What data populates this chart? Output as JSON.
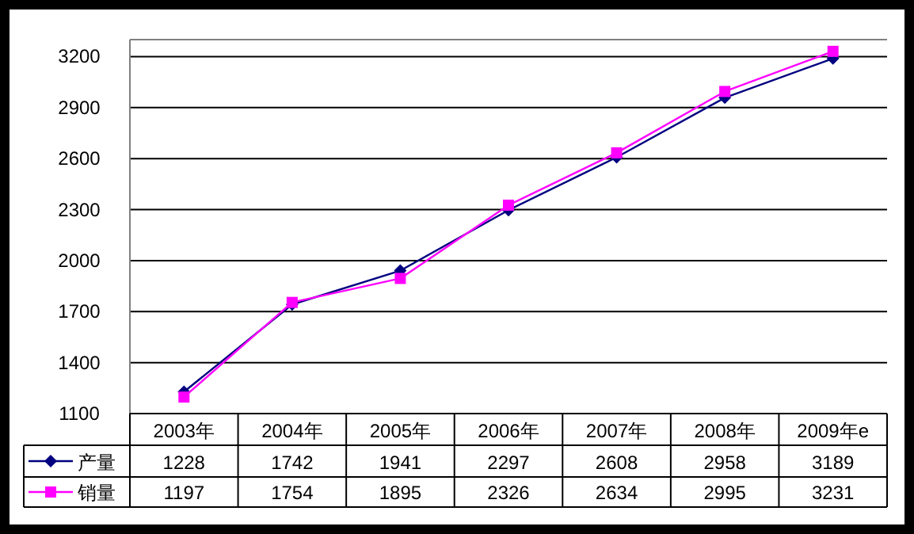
{
  "chart_data": {
    "type": "line",
    "categories": [
      "2003年",
      "2004年",
      "2005年",
      "2006年",
      "2007年",
      "2008年",
      "2009年e"
    ],
    "series": [
      {
        "name": "产量",
        "color": "#000080",
        "marker": "diamond",
        "values": [
          1228,
          1742,
          1941,
          2297,
          2608,
          2958,
          3189
        ]
      },
      {
        "name": "销量",
        "color": "#ff00ff",
        "marker": "square",
        "values": [
          1197,
          1754,
          1895,
          2326,
          2634,
          2995,
          3231
        ]
      }
    ],
    "ylim": [
      1100,
      3300
    ],
    "yticks": [
      1100,
      1400,
      1700,
      2000,
      2300,
      2600,
      2900,
      3200
    ],
    "grid": "y",
    "data_labels": true,
    "legend": "bottom left",
    "line_style": "solid"
  }
}
